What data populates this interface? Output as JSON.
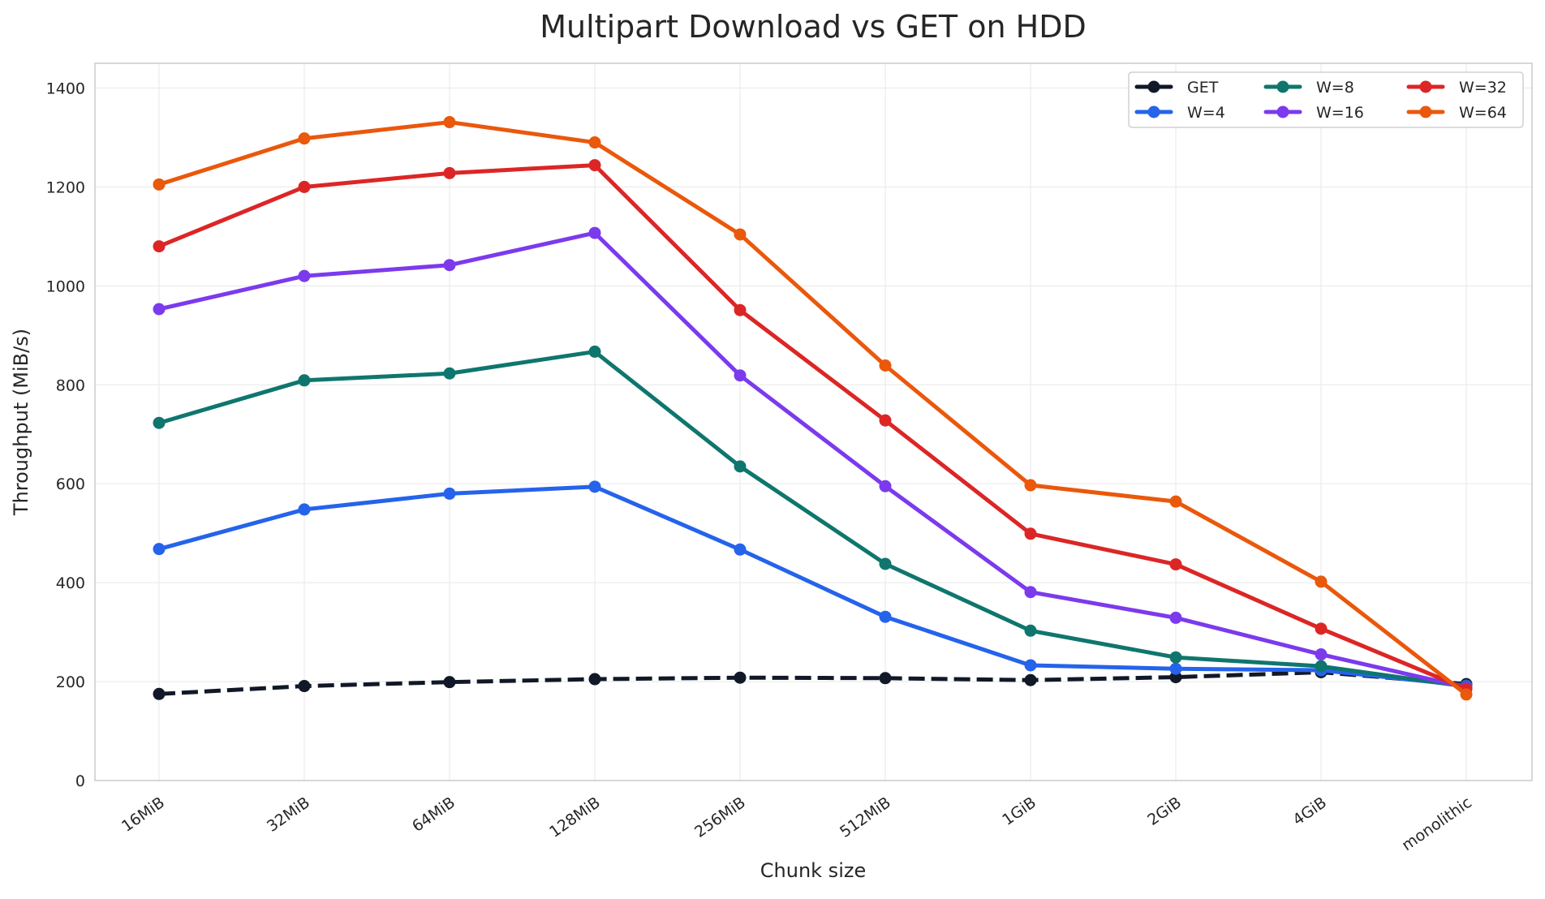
{
  "chart_data": {
    "type": "line",
    "title": "Multipart Download vs GET on HDD",
    "xlabel": "Chunk size",
    "ylabel": "Throughput (MiB/s)",
    "categories": [
      "16MiB",
      "32MiB",
      "64MiB",
      "128MiB",
      "256MiB",
      "512MiB",
      "1GiB",
      "2GiB",
      "4GiB",
      "monolithic"
    ],
    "ylim": [
      0,
      1450
    ],
    "yticks": [
      0,
      200,
      400,
      600,
      800,
      1000,
      1200,
      1400
    ],
    "grid": true,
    "legend_placement": "top-right",
    "series": [
      {
        "name": "GET",
        "color": "#111827",
        "dashed": true,
        "values": [
          175,
          191,
          199,
          205,
          208,
          207,
          203,
          209,
          219,
          195
        ]
      },
      {
        "name": "W=4",
        "color": "#2563eb",
        "values": [
          468,
          548,
          580,
          594,
          467,
          331,
          233,
          226,
          223,
          192
        ]
      },
      {
        "name": "W=8",
        "color": "#0f766e",
        "values": [
          723,
          809,
          823,
          867,
          635,
          438,
          303,
          249,
          231,
          190
        ]
      },
      {
        "name": "W=16",
        "color": "#7c3aed",
        "values": [
          953,
          1020,
          1042,
          1107,
          819,
          595,
          381,
          329,
          255,
          188
        ]
      },
      {
        "name": "W=32",
        "color": "#dc2626",
        "values": [
          1080,
          1200,
          1228,
          1244,
          951,
          728,
          499,
          437,
          307,
          185
        ]
      },
      {
        "name": "W=64",
        "color": "#ea580c",
        "values": [
          1205,
          1298,
          1331,
          1290,
          1104,
          839,
          597,
          564,
          402,
          174
        ]
      }
    ]
  }
}
